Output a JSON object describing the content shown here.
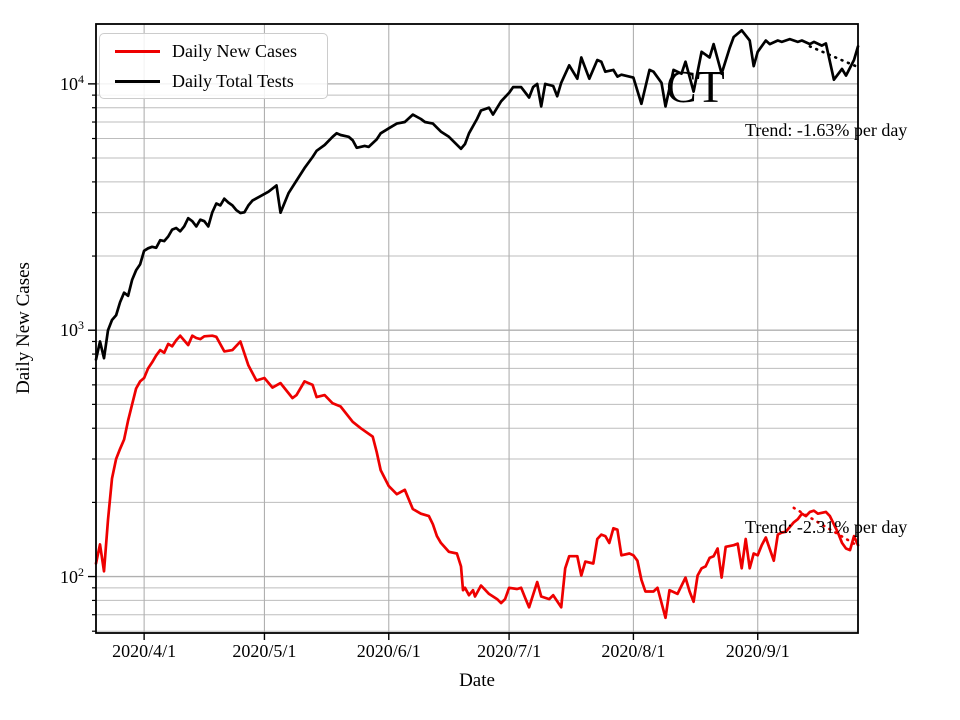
{
  "chart_data": {
    "type": "line",
    "title": "CT",
    "xlabel": "Date",
    "ylabel": "Daily New Cases",
    "yscale": "log",
    "grid": true,
    "x_unit": "days (0 = 2020/3/18)",
    "xlim": [
      2,
      192
    ],
    "ylim": [
      59,
      17500
    ],
    "x_ticks": [
      {
        "label": "2020/4/1",
        "day": 14
      },
      {
        "label": "2020/5/1",
        "day": 44
      },
      {
        "label": "2020/6/1",
        "day": 75
      },
      {
        "label": "2020/7/1",
        "day": 105
      },
      {
        "label": "2020/8/1",
        "day": 136
      },
      {
        "label": "2020/9/1",
        "day": 167
      }
    ],
    "y_ticks": [
      {
        "base": "10",
        "exp": "2",
        "value": 100
      },
      {
        "base": "10",
        "exp": "3",
        "value": 1000
      },
      {
        "base": "10",
        "exp": "4",
        "value": 10000
      }
    ],
    "legend": {
      "position": "upper left",
      "entries": [
        "Daily New Cases",
        "Daily Total Tests"
      ]
    },
    "series": [
      {
        "name": "Daily New Cases",
        "color": "#ee0000",
        "style": "solid",
        "points": [
          [
            2,
            113
          ],
          [
            3,
            135
          ],
          [
            4,
            105
          ],
          [
            5,
            170
          ],
          [
            6,
            250
          ],
          [
            7,
            300
          ],
          [
            8,
            330
          ],
          [
            9,
            360
          ],
          [
            10,
            430
          ],
          [
            11,
            500
          ],
          [
            12,
            580
          ],
          [
            13,
            620
          ],
          [
            14,
            640
          ],
          [
            15,
            700
          ],
          [
            16,
            740
          ],
          [
            17,
            790
          ],
          [
            18,
            830
          ],
          [
            19,
            810
          ],
          [
            20,
            880
          ],
          [
            21,
            860
          ],
          [
            22,
            910
          ],
          [
            23,
            950
          ],
          [
            25,
            870
          ],
          [
            26,
            950
          ],
          [
            27,
            930
          ],
          [
            28,
            920
          ],
          [
            29,
            945
          ],
          [
            31,
            950
          ],
          [
            32,
            940
          ],
          [
            34,
            820
          ],
          [
            36,
            830
          ],
          [
            38,
            900
          ],
          [
            40,
            720
          ],
          [
            42,
            625
          ],
          [
            44,
            640
          ],
          [
            46,
            585
          ],
          [
            48,
            610
          ],
          [
            51,
            530
          ],
          [
            52,
            545
          ],
          [
            54,
            620
          ],
          [
            56,
            600
          ],
          [
            57,
            535
          ],
          [
            59,
            545
          ],
          [
            61,
            505
          ],
          [
            63,
            490
          ],
          [
            66,
            425
          ],
          [
            68,
            400
          ],
          [
            71,
            370
          ],
          [
            72,
            320
          ],
          [
            73,
            270
          ],
          [
            75,
            233
          ],
          [
            77,
            216
          ],
          [
            79,
            225
          ],
          [
            81,
            188
          ],
          [
            83,
            180
          ],
          [
            85,
            176
          ],
          [
            86,
            163
          ],
          [
            87,
            146
          ],
          [
            88,
            137
          ],
          [
            90,
            126
          ],
          [
            92,
            124
          ],
          [
            93,
            110
          ],
          [
            93.5,
            88
          ],
          [
            94,
            90
          ],
          [
            95,
            84
          ],
          [
            96,
            88
          ],
          [
            96.5,
            83
          ],
          [
            98,
            92
          ],
          [
            100,
            85
          ],
          [
            102,
            81
          ],
          [
            103,
            78
          ],
          [
            104,
            81
          ],
          [
            105,
            90
          ],
          [
            107,
            89
          ],
          [
            108,
            90
          ],
          [
            109,
            82
          ],
          [
            110,
            75
          ],
          [
            112,
            95
          ],
          [
            113,
            83
          ],
          [
            115,
            81
          ],
          [
            116,
            84
          ],
          [
            118,
            75
          ],
          [
            119,
            108
          ],
          [
            120,
            121
          ],
          [
            122,
            121
          ],
          [
            123,
            101
          ],
          [
            124,
            115
          ],
          [
            126,
            113
          ],
          [
            127,
            142
          ],
          [
            128,
            148
          ],
          [
            129,
            146
          ],
          [
            130,
            137
          ],
          [
            131,
            157
          ],
          [
            132,
            155
          ],
          [
            133,
            122
          ],
          [
            135,
            124
          ],
          [
            136,
            122
          ],
          [
            137,
            116
          ],
          [
            138,
            97
          ],
          [
            139,
            87
          ],
          [
            141,
            87
          ],
          [
            142,
            90
          ],
          [
            144,
            68
          ],
          [
            145,
            88
          ],
          [
            147,
            85
          ],
          [
            149,
            99
          ],
          [
            150,
            87
          ],
          [
            151,
            79
          ],
          [
            152,
            101
          ],
          [
            153,
            108
          ],
          [
            154,
            110
          ],
          [
            155,
            119
          ],
          [
            156,
            121
          ],
          [
            157,
            130
          ],
          [
            158,
            99
          ],
          [
            159,
            132
          ],
          [
            161,
            134
          ],
          [
            162,
            136
          ],
          [
            163,
            108
          ],
          [
            164,
            142
          ],
          [
            165,
            108
          ],
          [
            166,
            124
          ],
          [
            167,
            122
          ],
          [
            168,
            134
          ],
          [
            169,
            144
          ],
          [
            171,
            116
          ],
          [
            172,
            148
          ],
          [
            173,
            151
          ],
          [
            174,
            152
          ],
          [
            176,
            166
          ],
          [
            177,
            171
          ],
          [
            178,
            180
          ],
          [
            179,
            176
          ],
          [
            180,
            183
          ],
          [
            181,
            185
          ],
          [
            182,
            180
          ],
          [
            184,
            183
          ],
          [
            185,
            176
          ],
          [
            186,
            163
          ],
          [
            187,
            151
          ],
          [
            188,
            137
          ],
          [
            189,
            130
          ],
          [
            190,
            128
          ],
          [
            191,
            146
          ],
          [
            192,
            134
          ]
        ]
      },
      {
        "name": "Daily Total Tests",
        "color": "#000000",
        "style": "solid",
        "points": [
          [
            2,
            760
          ],
          [
            3,
            900
          ],
          [
            4,
            770
          ],
          [
            5,
            1000
          ],
          [
            6,
            1100
          ],
          [
            7,
            1150
          ],
          [
            8,
            1300
          ],
          [
            9,
            1420
          ],
          [
            10,
            1380
          ],
          [
            11,
            1600
          ],
          [
            12,
            1750
          ],
          [
            13,
            1850
          ],
          [
            14,
            2100
          ],
          [
            15,
            2150
          ],
          [
            16,
            2180
          ],
          [
            17,
            2160
          ],
          [
            18,
            2320
          ],
          [
            19,
            2300
          ],
          [
            20,
            2400
          ],
          [
            21,
            2560
          ],
          [
            22,
            2600
          ],
          [
            23,
            2520
          ],
          [
            24,
            2640
          ],
          [
            25,
            2850
          ],
          [
            26,
            2770
          ],
          [
            27,
            2640
          ],
          [
            28,
            2810
          ],
          [
            29,
            2770
          ],
          [
            30,
            2640
          ],
          [
            31,
            3010
          ],
          [
            32,
            3270
          ],
          [
            33,
            3210
          ],
          [
            34,
            3420
          ],
          [
            35,
            3300
          ],
          [
            36,
            3210
          ],
          [
            37,
            3070
          ],
          [
            38,
            2990
          ],
          [
            39,
            3010
          ],
          [
            40,
            3210
          ],
          [
            41,
            3360
          ],
          [
            43,
            3500
          ],
          [
            45,
            3650
          ],
          [
            47,
            3870
          ],
          [
            48,
            3000
          ],
          [
            50,
            3600
          ],
          [
            52,
            4050
          ],
          [
            54,
            4550
          ],
          [
            56,
            5050
          ],
          [
            57,
            5350
          ],
          [
            59,
            5650
          ],
          [
            61,
            6100
          ],
          [
            62,
            6300
          ],
          [
            63,
            6200
          ],
          [
            65,
            6100
          ],
          [
            66,
            5900
          ],
          [
            67,
            5500
          ],
          [
            69,
            5600
          ],
          [
            70,
            5550
          ],
          [
            72,
            5950
          ],
          [
            73,
            6300
          ],
          [
            75,
            6600
          ],
          [
            77,
            6900
          ],
          [
            79,
            7000
          ],
          [
            81,
            7500
          ],
          [
            83,
            7200
          ],
          [
            84,
            7000
          ],
          [
            86,
            6900
          ],
          [
            88,
            6400
          ],
          [
            90,
            6100
          ],
          [
            93,
            5450
          ],
          [
            94,
            5700
          ],
          [
            95,
            6300
          ],
          [
            97,
            7200
          ],
          [
            98,
            7800
          ],
          [
            100,
            8000
          ],
          [
            101,
            7500
          ],
          [
            103,
            8500
          ],
          [
            105,
            9200
          ],
          [
            106,
            9700
          ],
          [
            108,
            9700
          ],
          [
            110,
            8800
          ],
          [
            111,
            9700
          ],
          [
            112,
            10000
          ],
          [
            113,
            8100
          ],
          [
            114,
            10000
          ],
          [
            116,
            9800
          ],
          [
            117,
            8900
          ],
          [
            118,
            10100
          ],
          [
            120,
            11900
          ],
          [
            122,
            10500
          ],
          [
            123,
            12800
          ],
          [
            125,
            10500
          ],
          [
            127,
            12500
          ],
          [
            128,
            12300
          ],
          [
            129,
            11200
          ],
          [
            131,
            11400
          ],
          [
            132,
            10700
          ],
          [
            133,
            10900
          ],
          [
            136,
            10600
          ],
          [
            138,
            8300
          ],
          [
            140,
            11400
          ],
          [
            141,
            11200
          ],
          [
            143,
            10100
          ],
          [
            144,
            8100
          ],
          [
            146,
            11400
          ],
          [
            148,
            11000
          ],
          [
            149,
            12300
          ],
          [
            151,
            9300
          ],
          [
            153,
            13500
          ],
          [
            155,
            12800
          ],
          [
            156,
            14500
          ],
          [
            158,
            11000
          ],
          [
            160,
            14000
          ],
          [
            161,
            15500
          ],
          [
            163,
            16500
          ],
          [
            165,
            15000
          ],
          [
            166,
            11800
          ],
          [
            167,
            13500
          ],
          [
            169,
            15000
          ],
          [
            170,
            14500
          ],
          [
            172,
            15000
          ],
          [
            173,
            14800
          ],
          [
            175,
            15200
          ],
          [
            177,
            14800
          ],
          [
            178,
            15000
          ],
          [
            180,
            14500
          ],
          [
            181,
            14800
          ],
          [
            183,
            14300
          ],
          [
            184,
            14600
          ],
          [
            186,
            10400
          ],
          [
            188,
            11500
          ],
          [
            189,
            10800
          ],
          [
            191,
            12500
          ],
          [
            192,
            14200
          ]
        ]
      }
    ],
    "trend_lines": [
      {
        "series": "Daily Total Tests",
        "color": "#000000",
        "style": "dotted",
        "rate": "-1.63% per day",
        "points": [
          [
            180,
            14200
          ],
          [
            192,
            11700
          ]
        ]
      },
      {
        "series": "Daily New Cases",
        "color": "#ee0000",
        "style": "dotted",
        "rate": "-2.31% per day",
        "points": [
          [
            176,
            190
          ],
          [
            192,
            133
          ]
        ]
      }
    ],
    "annotations": [
      {
        "text": "Trend: -1.63% per day"
      },
      {
        "text": "Trend: -2.31% per day"
      }
    ]
  }
}
